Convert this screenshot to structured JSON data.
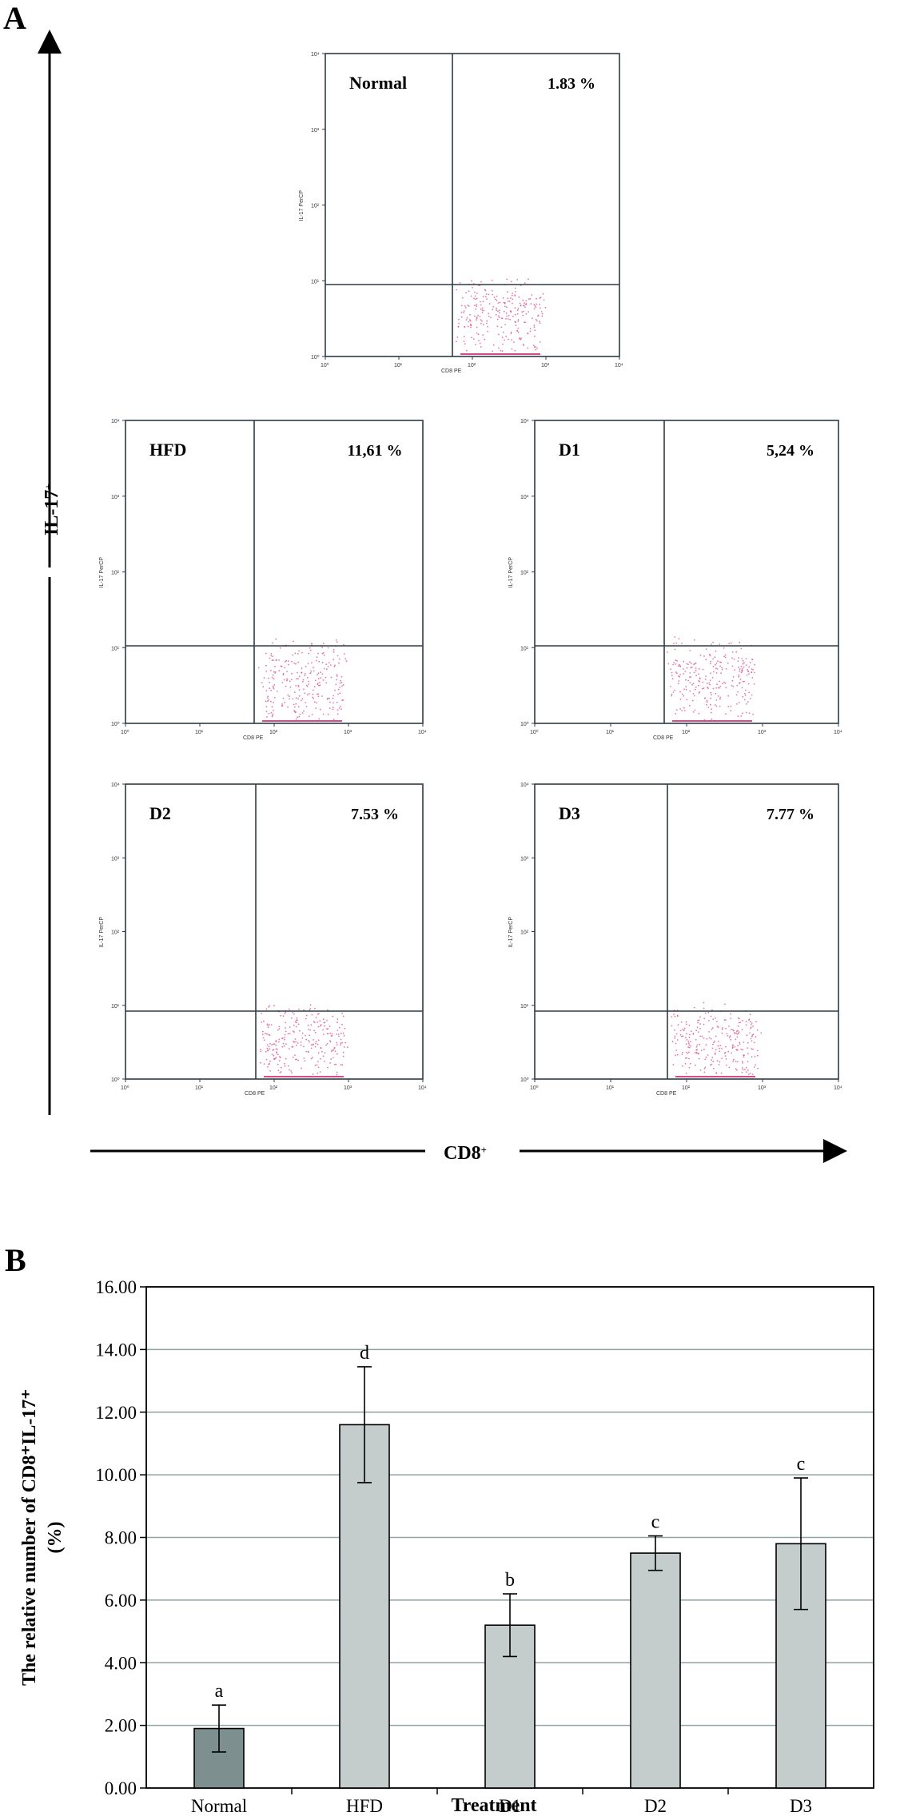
{
  "panel_a": {
    "letter": "A",
    "y_axis_label": "IL-17",
    "y_axis_sup": "+",
    "x_axis_label": "CD8",
    "x_axis_sup": "+",
    "plots": [
      {
        "key": "normal",
        "label": "Normal",
        "percent": "1.83 %"
      },
      {
        "key": "hfd",
        "label": "HFD",
        "percent": "11,61 %"
      },
      {
        "key": "d1",
        "label": "D1",
        "percent": "5,24 %"
      },
      {
        "key": "d2",
        "label": "D2",
        "percent": "7.53 %"
      },
      {
        "key": "d3",
        "label": "D3",
        "percent": "7.77 %"
      }
    ],
    "plot_x_tick_labels": [
      "10⁰",
      "10¹",
      "10²",
      "10³",
      "10⁴"
    ],
    "plot_y_tick_labels": [
      "10⁰",
      "10¹",
      "10²",
      "10³",
      "10⁴"
    ],
    "plot_x_caption": "CD8 PE",
    "plot_y_caption": "IL-17 PerCP",
    "dot_color": "#d94a8c"
  },
  "panel_b": {
    "letter": "B"
  },
  "chart_data": {
    "type": "bar",
    "title": "",
    "xlabel": "Treatment",
    "ylabel": "The relative number of CD8⁺IL-17⁺ (%)",
    "ylim": [
      0,
      16
    ],
    "y_ticks": [
      "0.00",
      "2.00",
      "4.00",
      "6.00",
      "8.00",
      "10.00",
      "12.00",
      "14.00",
      "16.00"
    ],
    "categories": [
      "Normal",
      "HFD",
      "D1",
      "D2",
      "D3"
    ],
    "values": [
      1.9,
      11.6,
      5.2,
      7.5,
      7.8
    ],
    "errors": [
      0.75,
      1.85,
      1.0,
      0.55,
      2.1
    ],
    "significance": [
      "a",
      "d",
      "b",
      "c",
      "c"
    ],
    "bar_colors": [
      "#7d8f8f",
      "#c4cccc",
      "#c4cccc",
      "#c4cccc",
      "#c4cccc"
    ],
    "grid": true
  }
}
